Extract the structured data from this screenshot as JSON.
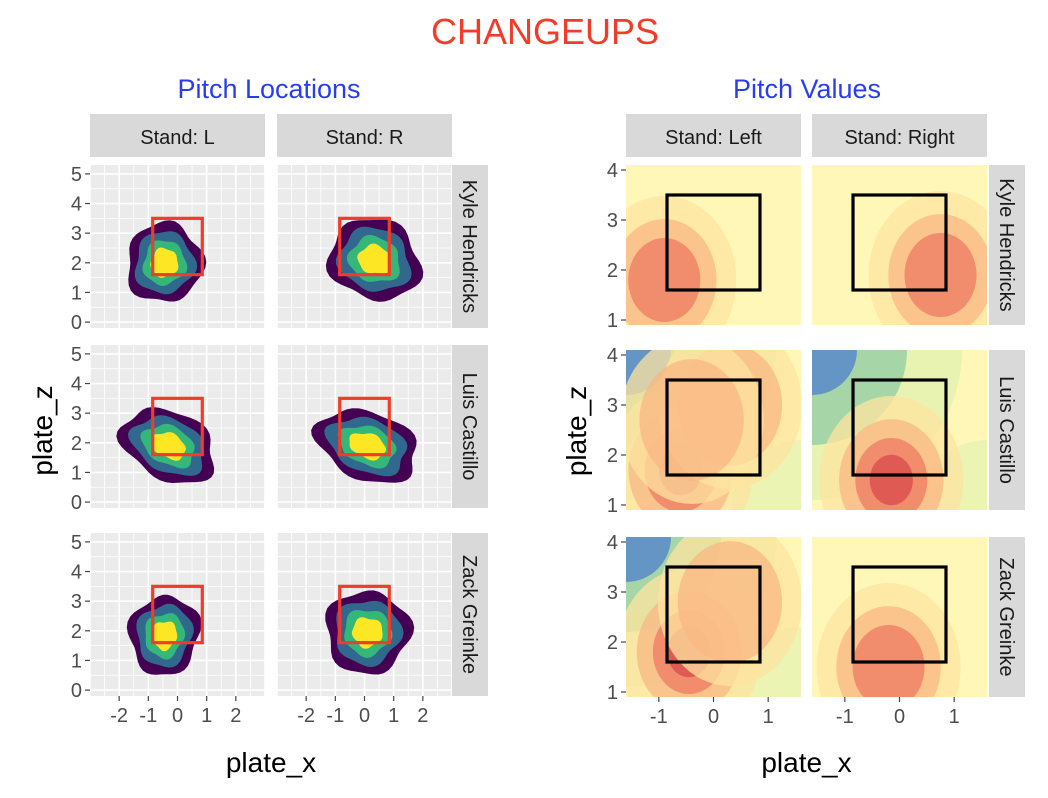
{
  "title": "CHANGEUPS",
  "colors": {
    "title": "#f03c28",
    "subtitle": "#2a3cf0",
    "panel_bg": "#ebebeb",
    "grid": "#ffffff",
    "strip_bg": "#d9d9d9",
    "density_levels": [
      "#440154",
      "#31688e",
      "#35b779",
      "#fde725"
    ],
    "zone_left": "#f03c28",
    "zone_right": "#000000",
    "value_scale": [
      "#5e8ec8",
      "#9fd3a6",
      "#e6f2b0",
      "#fff7b8",
      "#fde4a0",
      "#f9b784",
      "#ee7a62",
      "#d74a4a"
    ]
  },
  "chart_data": [
    {
      "type": "heatmap",
      "subtitle": "Pitch Locations",
      "xlabel": "plate_x",
      "ylabel": "plate_z",
      "xlim": [
        -3,
        3
      ],
      "ylim": [
        -0.2,
        5.3
      ],
      "xticks": [
        -2,
        -1,
        0,
        1,
        2
      ],
      "yticks": [
        0,
        1,
        2,
        3,
        4,
        5
      ],
      "grid": true,
      "columns": [
        "Stand: L",
        "Stand: R"
      ],
      "rows": [
        "Kyle Hendricks",
        "Luis Castillo",
        "Zack Greinke"
      ],
      "strike_zone": {
        "x": [
          -0.85,
          0.85
        ],
        "z": [
          1.6,
          3.5
        ]
      },
      "panels": [
        {
          "row": 0,
          "col": 0,
          "center": [
            -0.45,
            2.0
          ],
          "spread": [
            1.3,
            1.35
          ],
          "tilt": -0.25
        },
        {
          "row": 0,
          "col": 1,
          "center": [
            0.35,
            2.1
          ],
          "spread": [
            1.6,
            1.35
          ],
          "tilt": -0.35
        },
        {
          "row": 1,
          "col": 0,
          "center": [
            -0.3,
            1.9
          ],
          "spread": [
            1.7,
            1.15
          ],
          "tilt": -0.45
        },
        {
          "row": 1,
          "col": 1,
          "center": [
            0.1,
            1.9
          ],
          "spread": [
            1.8,
            1.15
          ],
          "tilt": -0.35
        },
        {
          "row": 2,
          "col": 0,
          "center": [
            -0.45,
            1.85
          ],
          "spread": [
            1.2,
            1.35
          ],
          "tilt": -0.2
        },
        {
          "row": 2,
          "col": 1,
          "center": [
            0.1,
            1.95
          ],
          "spread": [
            1.45,
            1.4
          ],
          "tilt": -0.15
        }
      ]
    },
    {
      "type": "heatmap",
      "subtitle": "Pitch Values",
      "xlabel": "plate_x",
      "ylabel": "plate_z",
      "xlim": [
        -1.6,
        1.6
      ],
      "ylim": [
        0.9,
        4.1
      ],
      "xticks": [
        -1,
        0,
        1
      ],
      "yticks": [
        1,
        2,
        3,
        4
      ],
      "grid": false,
      "columns": [
        "Stand: Left",
        "Stand: Right"
      ],
      "rows": [
        "Kyle Hendricks",
        "Luis Castillo",
        "Zack Greinke"
      ],
      "strike_zone": {
        "x": [
          -0.85,
          0.85
        ],
        "z": [
          1.6,
          3.5
        ]
      },
      "panels": [
        {
          "row": 0,
          "col": 0,
          "hot": [
            [
              -0.9,
              1.8,
              0.75
            ]
          ],
          "cold_corner": "none"
        },
        {
          "row": 0,
          "col": 1,
          "hot": [
            [
              0.75,
              1.9,
              0.75
            ]
          ],
          "cold_corner": "none"
        },
        {
          "row": 1,
          "col": 0,
          "hot": [
            [
              -0.6,
              1.7,
              0.9
            ],
            [
              0.3,
              3.0,
              0.5
            ],
            [
              -0.4,
              2.7,
              0.45
            ]
          ],
          "cold_corner": "top-left"
        },
        {
          "row": 1,
          "col": 1,
          "hot": [
            [
              -0.15,
              1.5,
              0.95
            ]
          ],
          "cold_corner": "top-left"
        },
        {
          "row": 2,
          "col": 0,
          "hot": [
            [
              -0.45,
              1.8,
              1.0
            ],
            [
              0.3,
              2.8,
              0.35
            ]
          ],
          "cold_corner": "top-left"
        },
        {
          "row": 2,
          "col": 1,
          "hot": [
            [
              -0.2,
              1.5,
              0.65
            ]
          ],
          "cold_corner": "none"
        }
      ]
    }
  ]
}
